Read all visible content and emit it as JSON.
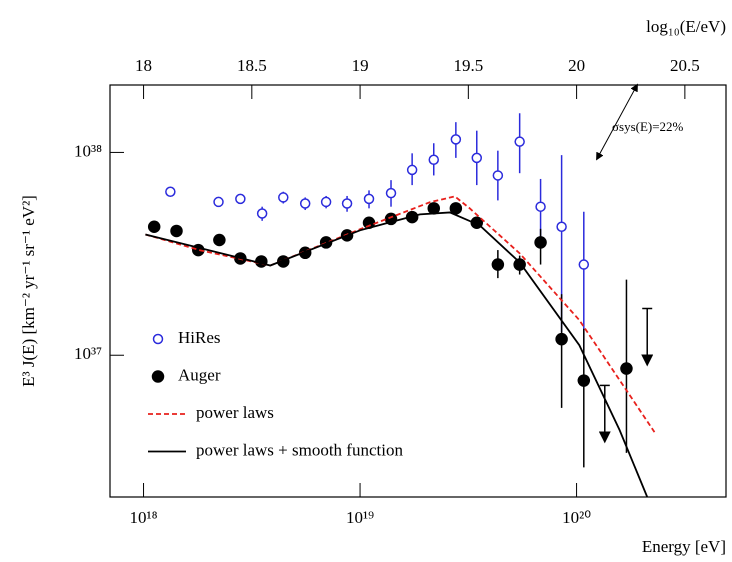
{
  "chart_data": {
    "type": "scatter",
    "x_label": "Energy [eV]",
    "y_label": "E³ J(E) [km⁻² yr⁻¹ sr⁻¹ eV²]",
    "x2_label": "log₁₀(E/eV)",
    "annotation": "σsys(E)=22%",
    "log_x": true,
    "log_y": true,
    "legend": "lower left",
    "xlim": [
      7e+17,
      4.9e+20
    ],
    "ylim": [
      2e+36,
      2.15e+38
    ],
    "xticks": [
      {
        "value": 1e+18,
        "label": "10¹⁸"
      },
      {
        "value": 1e+19,
        "label": "10¹⁹"
      },
      {
        "value": 1e+20,
        "label": "10²⁰"
      }
    ],
    "yticks": [
      {
        "value": 1e+37,
        "label": "10³⁷"
      },
      {
        "value": 1e+38,
        "label": "10³⁸"
      }
    ],
    "x2lim": [
      17.845,
      20.69
    ],
    "x2ticks": [
      18,
      18.5,
      19,
      19.5,
      20,
      20.5
    ],
    "series": [
      {
        "name": "HiRes",
        "type": "scatter",
        "marker": "open",
        "color": "#2b2bdc",
        "x": [
          1.33e+18,
          2.22e+18,
          2.8e+18,
          3.53e+18,
          4.42e+18,
          5.58e+18,
          6.97e+18,
          8.71e+18,
          1.1e+19,
          1.39e+19,
          1.74e+19,
          2.19e+19,
          2.77e+19,
          3.46e+19,
          4.33e+19,
          5.46e+19,
          6.82e+19,
          8.53e+19,
          1.08e+20
        ],
        "values": [
          6.4e+37,
          5.7e+37,
          5.9e+37,
          5e+37,
          6e+37,
          5.6e+37,
          5.7e+37,
          5.6e+37,
          5.9e+37,
          6.3e+37,
          8.2e+37,
          9.2e+37,
          1.16e+38,
          9.4e+37,
          7.7e+37,
          1.13e+38,
          5.4e+37,
          4.3e+37,
          2.8e+37
        ],
        "err_minus": [
          3e+36,
          3e+36,
          3e+36,
          4e+36,
          4e+36,
          4e+36,
          4e+36,
          5e+36,
          6e+36,
          9e+36,
          1.3e+37,
          1.5e+37,
          2.2e+37,
          2.5e+37,
          1.9e+37,
          3.4e+37,
          1.7e+37,
          3e+37,
          1.74e+37
        ],
        "err_plus": [
          3e+36,
          3e+36,
          3e+36,
          4e+36,
          4e+36,
          4e+36,
          4e+36,
          5e+36,
          6e+36,
          1e+37,
          1.7e+37,
          1.9e+37,
          2.5e+37,
          3.4e+37,
          2.5e+37,
          4.3e+37,
          2e+37,
          5.4e+37,
          2.3e+37
        ]
      },
      {
        "name": "Auger",
        "type": "scatter",
        "marker": "filled",
        "color": "#000000",
        "x": [
          1.12e+18,
          1.42e+18,
          1.79e+18,
          2.24e+18,
          2.8e+18,
          3.5e+18,
          4.42e+18,
          5.58e+18,
          6.97e+18,
          8.71e+18,
          1.1e+19,
          1.39e+19,
          1.74e+19,
          2.19e+19,
          2.77e+19,
          3.46e+19,
          4.33e+19,
          5.46e+19,
          6.82e+19,
          8.53e+19,
          1.08e+20,
          1.7e+20
        ],
        "values": [
          4.3e+37,
          4.1e+37,
          3.3e+37,
          3.7e+37,
          3e+37,
          2.9e+37,
          2.9e+37,
          3.2e+37,
          3.6e+37,
          3.9e+37,
          4.5e+37,
          4.7e+37,
          4.8e+37,
          5.3e+37,
          5.3e+37,
          4.5e+37,
          2.8e+37,
          2.8e+37,
          3.6e+37,
          1.2e+37,
          7.5e+36,
          8.6e+36
        ],
        "err_minus": [
          null,
          null,
          null,
          null,
          null,
          null,
          null,
          null,
          null,
          null,
          null,
          null,
          null,
          null,
          null,
          null,
          4e+36,
          3e+36,
          8e+36,
          6.5e+36,
          4.7e+36,
          5.3e+36
        ],
        "err_plus": [
          null,
          null,
          null,
          null,
          null,
          null,
          null,
          null,
          null,
          null,
          null,
          null,
          null,
          null,
          null,
          null,
          5e+36,
          3e+36,
          6e+36,
          8e+36,
          6e+36,
          1.5e+37
        ],
        "upper_limits": {
          "x": [
            1.35e+20,
            2.12e+20
          ],
          "values": [
            7.1e+36,
            1.7e+37
          ]
        }
      },
      {
        "name": "power laws",
        "type": "line",
        "dash": true,
        "color": "#e8201c",
        "x": [
          1.02e+18,
          1.83e+18,
          3.85e+18,
          1e+19,
          2.1e+19,
          2.74e+19,
          3.21e+19,
          5.46e+19,
          1.03e+20,
          2.29e+20
        ],
        "values": [
          3.94e+37,
          3.29e+37,
          2.77e+37,
          4.18e+37,
          5.68e+37,
          6.07e+37,
          5.3e+37,
          3.18e+37,
          1.49e+37,
          4.18e+36
        ]
      },
      {
        "name": "power laws + smooth function",
        "type": "line",
        "dash": false,
        "color": "#000000",
        "x": [
          1.02e+18,
          3.85e+18,
          1e+19,
          1.89e+19,
          2.6e+19,
          3.57e+19,
          5.46e+19,
          1.03e+20,
          1.58e+20,
          2.12e+20
        ],
        "values": [
          3.94e+37,
          2.77e+37,
          4.13e+37,
          4.95e+37,
          5.06e+37,
          4.37e+37,
          2.87e+37,
          1.12e+37,
          4.28e+36,
          2e+36
        ]
      }
    ]
  }
}
